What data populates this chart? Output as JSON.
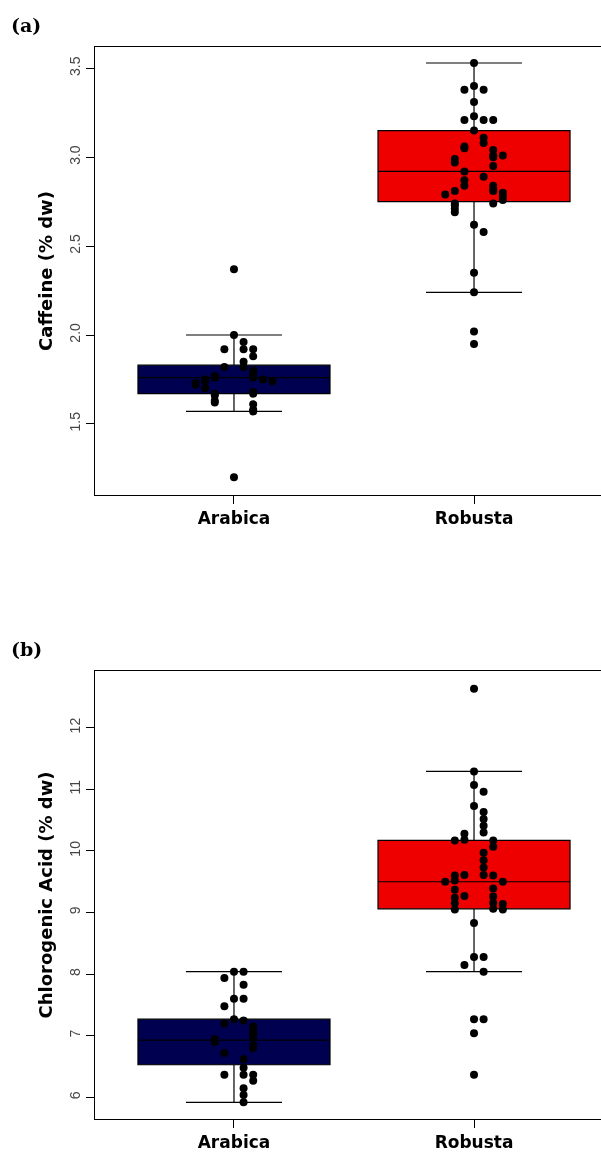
{
  "chart_data": [
    {
      "type": "box",
      "title": "(a)",
      "ylabel": "Caffeine (% dw)",
      "categories": [
        "Arabica",
        "Robusta"
      ],
      "colors": [
        "#000050",
        "#ee0000"
      ],
      "boxes": [
        {
          "low": 1.57,
          "q1": 1.67,
          "median": 1.76,
          "q3": 1.83,
          "high": 2.0
        },
        {
          "low": 2.24,
          "q1": 2.75,
          "median": 2.92,
          "q3": 3.15,
          "high": 3.53
        }
      ],
      "series": [
        {
          "type": "scatter",
          "color": "#000000",
          "x": [
            "Arabica",
            "Arabica",
            "Arabica",
            "Arabica",
            "Arabica",
            "Arabica",
            "Arabica",
            "Arabica",
            "Arabica",
            "Arabica",
            "Arabica",
            "Arabica",
            "Arabica",
            "Arabica",
            "Arabica",
            "Arabica",
            "Arabica",
            "Arabica",
            "Arabica",
            "Arabica",
            "Arabica",
            "Arabica",
            "Arabica",
            "Arabica",
            "Arabica",
            "Arabica",
            "Arabica",
            "Arabica",
            "Arabica",
            "Arabica",
            "Arabica",
            "Arabica",
            "Robusta",
            "Robusta",
            "Robusta",
            "Robusta",
            "Robusta",
            "Robusta",
            "Robusta",
            "Robusta",
            "Robusta",
            "Robusta",
            "Robusta",
            "Robusta",
            "Robusta",
            "Robusta",
            "Robusta",
            "Robusta",
            "Robusta",
            "Robusta",
            "Robusta",
            "Robusta",
            "Robusta",
            "Robusta",
            "Robusta",
            "Robusta",
            "Robusta",
            "Robusta",
            "Robusta",
            "Robusta",
            "Robusta",
            "Robusta",
            "Robusta",
            "Robusta",
            "Robusta",
            "Robusta",
            "Robusta",
            "Robusta",
            "Robusta",
            "Robusta",
            "Robusta",
            "Robusta",
            "Robusta",
            "Robusta",
            "Robusta",
            "Robusta"
          ],
          "values": [
            2.37,
            2.0,
            1.96,
            1.92,
            1.92,
            1.92,
            1.88,
            1.85,
            1.82,
            1.82,
            1.8,
            1.78,
            1.77,
            1.76,
            1.76,
            1.75,
            1.75,
            1.74,
            1.74,
            1.73,
            1.72,
            1.7,
            1.68,
            1.67,
            1.67,
            1.66,
            1.63,
            1.62,
            1.61,
            1.58,
            1.57,
            1.2,
            3.53,
            3.4,
            3.38,
            3.38,
            3.31,
            3.23,
            3.21,
            3.21,
            3.21,
            3.15,
            3.11,
            3.08,
            3.06,
            3.05,
            3.04,
            3.01,
            3.0,
            3.01,
            2.99,
            2.97,
            2.95,
            2.92,
            2.89,
            2.87,
            2.84,
            2.84,
            2.82,
            2.81,
            2.81,
            2.8,
            2.79,
            2.78,
            2.76,
            2.74,
            2.74,
            2.73,
            2.71,
            2.69,
            2.62,
            2.58,
            2.35,
            2.24,
            2.02,
            1.95
          ]
        }
      ],
      "ylim": [
        1.1,
        3.62
      ],
      "yticks": [
        {
          "value": 1.5,
          "label": "1.5"
        },
        {
          "value": 2,
          "label": "2.0"
        },
        {
          "value": 2.5,
          "label": "2.5"
        },
        {
          "value": 3,
          "label": "3.0"
        },
        {
          "value": 3.5,
          "label": "3.5"
        }
      ],
      "grid": false,
      "legend": false,
      "marker": "circle"
    },
    {
      "type": "box",
      "title": "(b)",
      "ylabel": "Chlorogenic Acid (% dw)",
      "categories": [
        "Arabica",
        "Robusta"
      ],
      "colors": [
        "#000050",
        "#ee0000"
      ],
      "boxes": [
        {
          "low": 5.92,
          "q1": 6.53,
          "median": 6.93,
          "q3": 7.27,
          "high": 8.04
        },
        {
          "low": 8.04,
          "q1": 9.06,
          "median": 9.5,
          "q3": 10.17,
          "high": 11.29
        }
      ],
      "series": [
        {
          "type": "scatter",
          "color": "#000000",
          "x": [
            "Arabica",
            "Arabica",
            "Arabica",
            "Arabica",
            "Arabica",
            "Arabica",
            "Arabica",
            "Arabica",
            "Arabica",
            "Arabica",
            "Arabica",
            "Arabica",
            "Arabica",
            "Arabica",
            "Arabica",
            "Arabica",
            "Arabica",
            "Arabica",
            "Arabica",
            "Arabica",
            "Arabica",
            "Arabica",
            "Arabica",
            "Arabica",
            "Arabica",
            "Arabica",
            "Arabica",
            "Arabica",
            "Arabica",
            "Robusta",
            "Robusta",
            "Robusta",
            "Robusta",
            "Robusta",
            "Robusta",
            "Robusta",
            "Robusta",
            "Robusta",
            "Robusta",
            "Robusta",
            "Robusta",
            "Robusta",
            "Robusta",
            "Robusta",
            "Robusta",
            "Robusta",
            "Robusta",
            "Robusta",
            "Robusta",
            "Robusta",
            "Robusta",
            "Robusta",
            "Robusta",
            "Robusta",
            "Robusta",
            "Robusta",
            "Robusta",
            "Robusta",
            "Robusta",
            "Robusta",
            "Robusta",
            "Robusta",
            "Robusta",
            "Robusta",
            "Robusta",
            "Robusta",
            "Robusta",
            "Robusta",
            "Robusta",
            "Robusta",
            "Robusta",
            "Robusta",
            "Robusta"
          ],
          "values": [
            8.04,
            8.04,
            7.94,
            7.83,
            7.6,
            7.6,
            7.48,
            7.27,
            7.25,
            7.2,
            7.15,
            7.1,
            7.05,
            7.03,
            6.98,
            6.95,
            6.9,
            6.85,
            6.8,
            6.72,
            6.62,
            6.48,
            6.37,
            6.37,
            6.37,
            6.27,
            6.15,
            6.04,
            5.92,
            12.63,
            11.29,
            11.07,
            10.96,
            10.73,
            10.63,
            10.52,
            10.41,
            10.3,
            10.28,
            10.18,
            10.17,
            10.17,
            10.07,
            9.97,
            9.85,
            9.73,
            9.61,
            9.61,
            9.6,
            9.6,
            9.52,
            9.5,
            9.5,
            9.39,
            9.37,
            9.27,
            9.26,
            9.24,
            9.16,
            9.15,
            9.14,
            9.06,
            9.05,
            9.05,
            8.83,
            8.28,
            8.28,
            8.15,
            8.04,
            7.27,
            7.27,
            7.04,
            6.37
          ]
        }
      ],
      "ylim": [
        5.65,
        12.92
      ],
      "yticks": [
        6,
        7,
        8,
        9,
        10,
        11,
        12
      ],
      "grid": false,
      "legend": false,
      "marker": "circle"
    }
  ]
}
